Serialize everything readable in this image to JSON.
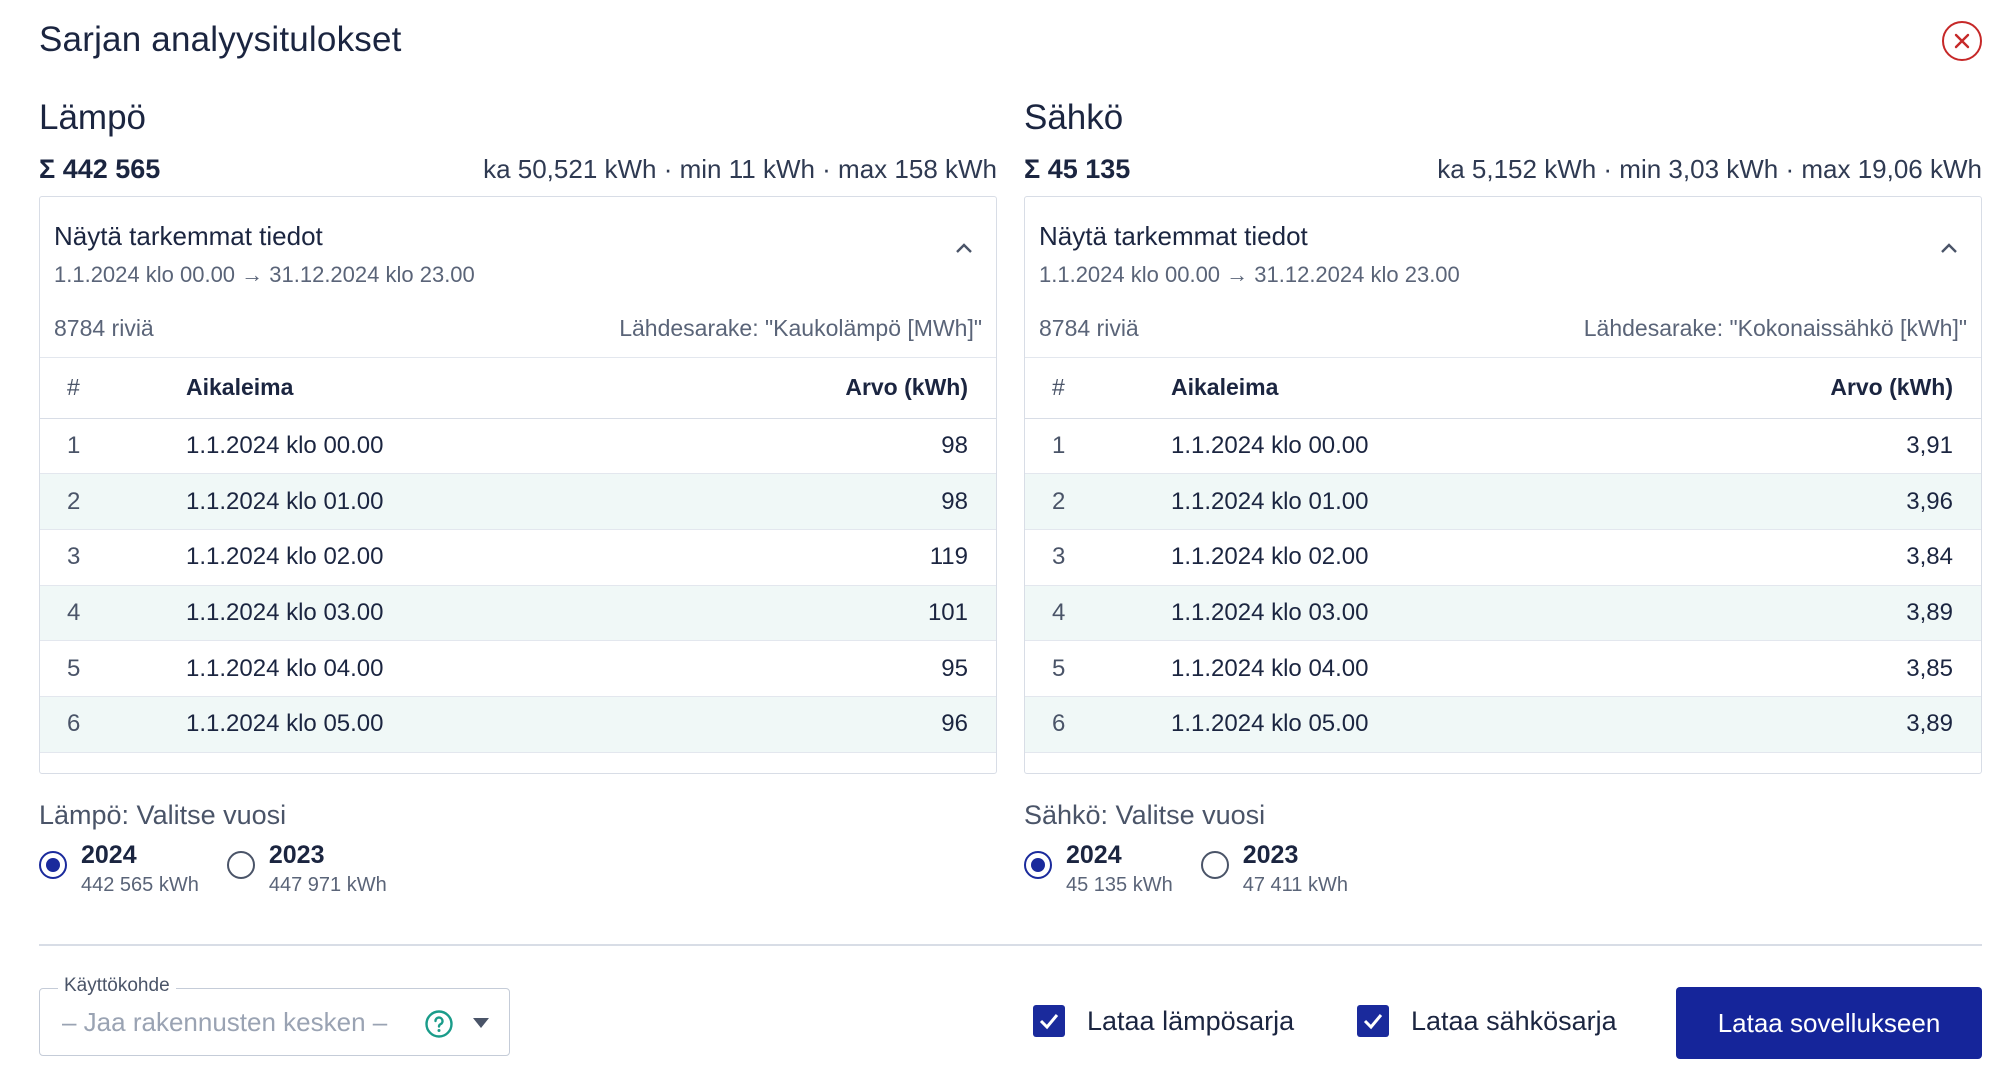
{
  "dialog": {
    "title": "Sarjan analyysitulokset",
    "close_icon": "close-icon"
  },
  "colors": {
    "primary": "#15259a",
    "close": "#c62828",
    "row_alt": "#f0f8f7",
    "help": "#1a9c8a"
  },
  "heat": {
    "heading": "Lämpö",
    "sum": "Σ 442 565",
    "stats": "ka 50,521 kWh · min 11 kWh · max 158 kWh",
    "details_title": "Näytä tarkemmat tiedot",
    "range": "1.1.2024 klo 00.00 → 31.12.2024 klo 23.00",
    "rows_count": "8784 riviä",
    "source": "Lähdesarake: \"Kaukolämpö [MWh]\"",
    "columns": [
      "#",
      "Aikaleima",
      "Arvo (kWh)"
    ],
    "rows": [
      {
        "n": "1",
        "time": "1.1.2024 klo 00.00",
        "value": "98"
      },
      {
        "n": "2",
        "time": "1.1.2024 klo 01.00",
        "value": "98"
      },
      {
        "n": "3",
        "time": "1.1.2024 klo 02.00",
        "value": "119"
      },
      {
        "n": "4",
        "time": "1.1.2024 klo 03.00",
        "value": "101"
      },
      {
        "n": "5",
        "time": "1.1.2024 klo 04.00",
        "value": "95"
      },
      {
        "n": "6",
        "time": "1.1.2024 klo 05.00",
        "value": "96"
      }
    ],
    "year_label": "Lämpö: Valitse vuosi",
    "years": [
      {
        "year": "2024",
        "total": "442 565 kWh",
        "selected": true
      },
      {
        "year": "2023",
        "total": "447 971 kWh",
        "selected": false
      }
    ]
  },
  "electricity": {
    "heading": "Sähkö",
    "sum": "Σ 45 135",
    "stats": "ka 5,152 kWh · min 3,03 kWh · max 19,06 kWh",
    "details_title": "Näytä tarkemmat tiedot",
    "range": "1.1.2024 klo 00.00 → 31.12.2024 klo 23.00",
    "rows_count": "8784 riviä",
    "source": "Lähdesarake: \"Kokonaissähkö [kWh]\"",
    "columns": [
      "#",
      "Aikaleima",
      "Arvo (kWh)"
    ],
    "rows": [
      {
        "n": "1",
        "time": "1.1.2024 klo 00.00",
        "value": "3,91"
      },
      {
        "n": "2",
        "time": "1.1.2024 klo 01.00",
        "value": "3,96"
      },
      {
        "n": "3",
        "time": "1.1.2024 klo 02.00",
        "value": "3,84"
      },
      {
        "n": "4",
        "time": "1.1.2024 klo 03.00",
        "value": "3,89"
      },
      {
        "n": "5",
        "time": "1.1.2024 klo 04.00",
        "value": "3,85"
      },
      {
        "n": "6",
        "time": "1.1.2024 klo 05.00",
        "value": "3,89"
      }
    ],
    "year_label": "Sähkö: Valitse vuosi",
    "years": [
      {
        "year": "2024",
        "total": "45 135 kWh",
        "selected": true
      },
      {
        "year": "2023",
        "total": "47 411 kWh",
        "selected": false
      }
    ]
  },
  "footer": {
    "usage_label": "Käyttökohde",
    "usage_placeholder": "– Jaa rakennusten kesken –",
    "help_icon": "help-icon",
    "dropdown_icon": "chevron-down-icon",
    "load_heat_label": "Lataa lämpösarja",
    "load_heat_checked": true,
    "load_elec_label": "Lataa sähkösarja",
    "load_elec_checked": true,
    "submit_label": "Lataa sovellukseen"
  }
}
